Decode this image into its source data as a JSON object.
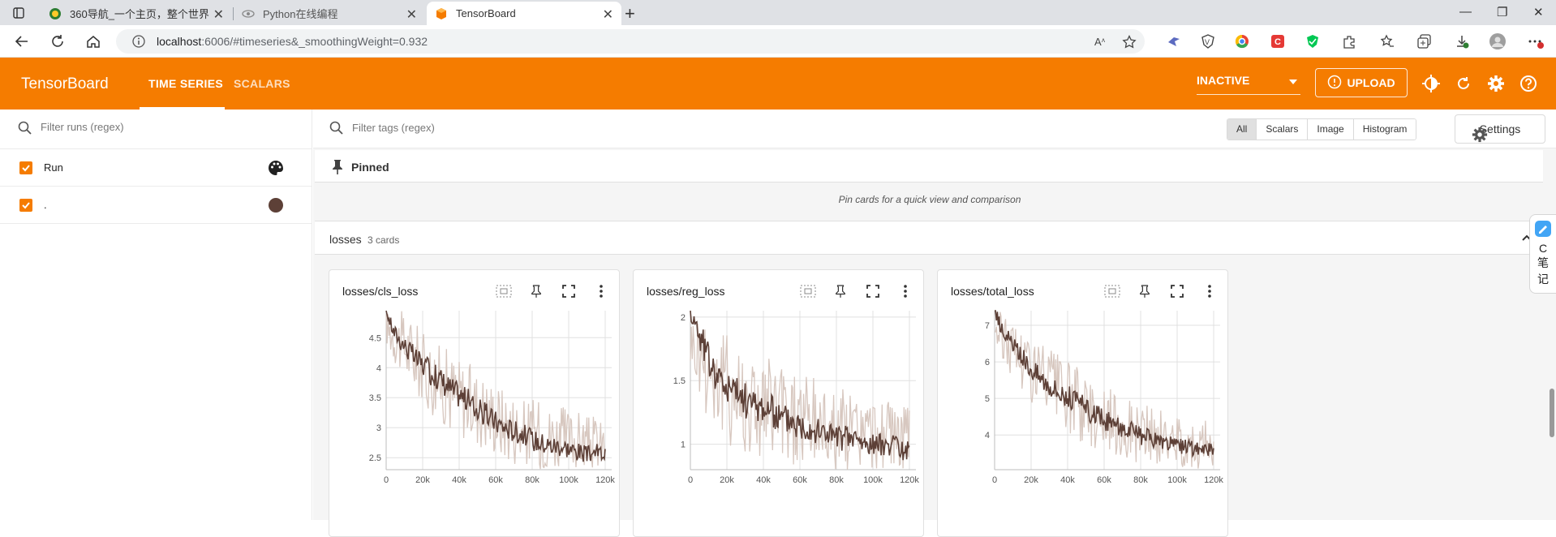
{
  "browser": {
    "tabs": [
      {
        "title": "360导航_一个主页，整个世界"
      },
      {
        "title": "Python在线编程"
      },
      {
        "title": "TensorBoard"
      }
    ],
    "url": {
      "host": "localhost",
      "path": ":6006/#timeseries&_smoothingWeight=0.932"
    }
  },
  "header": {
    "logo": "TensorBoard",
    "tabs": [
      "TIME SERIES",
      "SCALARS"
    ],
    "run_state": "INACTIVE",
    "upload_label": "UPLOAD"
  },
  "sidebar": {
    "filter_placeholder": "Filter runs (regex)",
    "runs": [
      {
        "label": "Run",
        "checked": true
      },
      {
        "label": ".",
        "checked": true,
        "color": "#5d4037"
      }
    ]
  },
  "main": {
    "filter_placeholder": "Filter tags (regex)",
    "type_filters": [
      "All",
      "Scalars",
      "Image",
      "Histogram"
    ],
    "selected_type": "All",
    "settings_label": "Settings",
    "pinned_label": "Pinned",
    "pinned_message": "Pin cards for a quick view and comparison",
    "group_name": "losses",
    "group_count": "3 cards"
  },
  "side_widget": {
    "line1": "C",
    "line2": "笔",
    "line3": "记"
  },
  "colors": {
    "accent": "#f57c00",
    "smoothed": "#5d4037",
    "raw": "#d7c7bf"
  },
  "chart_data": [
    {
      "type": "line",
      "title": "losses/cls_loss",
      "xticks": [
        "0",
        "20k",
        "40k",
        "60k",
        "80k",
        "100k",
        "120k"
      ],
      "yticks": [
        "2.5",
        "3",
        "3.5",
        "4",
        "4.5"
      ],
      "xlim": [
        0,
        120000
      ],
      "ylim": [
        2.3,
        4.95
      ],
      "series": [
        {
          "x": [
            0,
            4000,
            8000,
            12000,
            16000,
            20000,
            25000,
            30000,
            35000,
            40000,
            45000,
            50000,
            55000,
            60000,
            65000,
            70000,
            75000,
            80000,
            85000,
            90000,
            95000,
            100000,
            105000,
            110000,
            115000,
            120000
          ],
          "smoothed": [
            4.95,
            4.6,
            4.45,
            4.3,
            4.15,
            4.05,
            3.9,
            3.8,
            3.65,
            3.55,
            3.45,
            3.3,
            3.2,
            3.1,
            3.0,
            2.95,
            2.9,
            2.8,
            2.75,
            2.7,
            2.7,
            2.65,
            2.6,
            2.55,
            2.6,
            2.55
          ],
          "raw_min": [
            4.4,
            4.1,
            3.9,
            3.7,
            3.55,
            3.4,
            3.2,
            3.1,
            2.9,
            2.85,
            2.8,
            2.7,
            2.6,
            2.55,
            2.45,
            2.4,
            2.35,
            2.35,
            2.3,
            2.3,
            2.3,
            2.3,
            2.3,
            2.3,
            2.3,
            2.3
          ],
          "raw_max": [
            4.95,
            4.95,
            4.95,
            4.9,
            4.8,
            4.6,
            4.5,
            4.4,
            4.3,
            4.2,
            4.1,
            4.0,
            3.9,
            3.8,
            3.7,
            3.6,
            3.5,
            3.5,
            3.45,
            3.4,
            3.4,
            3.3,
            3.3,
            3.2,
            3.2,
            3.1
          ]
        }
      ]
    },
    {
      "type": "line",
      "title": "losses/reg_loss",
      "xticks": [
        "0",
        "20k",
        "40k",
        "60k",
        "80k",
        "100k",
        "120k"
      ],
      "yticks": [
        "1",
        "1.5",
        "2"
      ],
      "xlim": [
        0,
        120000
      ],
      "ylim": [
        0.8,
        2.05
      ],
      "series": [
        {
          "x": [
            0,
            4000,
            8000,
            12000,
            16000,
            20000,
            25000,
            30000,
            35000,
            40000,
            45000,
            50000,
            55000,
            60000,
            65000,
            70000,
            75000,
            80000,
            85000,
            90000,
            95000,
            100000,
            105000,
            110000,
            115000,
            120000
          ],
          "smoothed": [
            2.05,
            1.9,
            1.75,
            1.6,
            1.5,
            1.45,
            1.4,
            1.35,
            1.3,
            1.3,
            1.25,
            1.2,
            1.2,
            1.15,
            1.15,
            1.1,
            1.1,
            1.05,
            1.05,
            1.05,
            1.0,
            1.0,
            1.0,
            1.0,
            0.95,
            0.95
          ],
          "raw_min": [
            1.6,
            1.4,
            1.25,
            1.15,
            1.05,
            1.0,
            0.95,
            0.9,
            0.9,
            0.85,
            0.85,
            0.85,
            0.8,
            0.8,
            0.8,
            0.8,
            0.8,
            0.8,
            0.8,
            0.8,
            0.8,
            0.8,
            0.8,
            0.8,
            0.8,
            0.8
          ],
          "raw_max": [
            2.05,
            2.05,
            2.05,
            2.0,
            1.95,
            1.9,
            1.85,
            1.8,
            1.75,
            1.7,
            1.7,
            1.65,
            1.6,
            1.6,
            1.55,
            1.5,
            1.5,
            1.45,
            1.45,
            1.4,
            1.4,
            1.35,
            1.35,
            1.35,
            1.3,
            1.3
          ]
        }
      ]
    },
    {
      "type": "line",
      "title": "losses/total_loss",
      "xticks": [
        "0",
        "20k",
        "40k",
        "60k",
        "80k",
        "100k",
        "120k"
      ],
      "yticks": [
        "4",
        "5",
        "6",
        "7"
      ],
      "xlim": [
        0,
        120000
      ],
      "ylim": [
        3.05,
        7.4
      ],
      "series": [
        {
          "x": [
            0,
            4000,
            8000,
            12000,
            16000,
            20000,
            25000,
            30000,
            35000,
            40000,
            45000,
            50000,
            55000,
            60000,
            65000,
            70000,
            75000,
            80000,
            85000,
            90000,
            95000,
            100000,
            105000,
            110000,
            115000,
            120000
          ],
          "smoothed": [
            7.4,
            6.9,
            6.6,
            6.3,
            6.05,
            5.85,
            5.6,
            5.4,
            5.2,
            5.05,
            4.9,
            4.7,
            4.55,
            4.4,
            4.3,
            4.2,
            4.1,
            3.95,
            3.9,
            3.8,
            3.75,
            3.7,
            3.65,
            3.6,
            3.6,
            3.6
          ],
          "raw_min": [
            6.5,
            6.0,
            5.7,
            5.4,
            5.1,
            4.9,
            4.6,
            4.4,
            4.2,
            4.0,
            3.9,
            3.7,
            3.6,
            3.5,
            3.4,
            3.35,
            3.3,
            3.2,
            3.15,
            3.1,
            3.1,
            3.1,
            3.1,
            3.05,
            3.1,
            3.1
          ],
          "raw_max": [
            7.4,
            7.4,
            7.3,
            7.2,
            7.0,
            6.8,
            6.6,
            6.4,
            6.2,
            6.0,
            5.9,
            5.7,
            5.5,
            5.4,
            5.2,
            5.1,
            5.0,
            4.9,
            4.8,
            4.7,
            4.6,
            4.6,
            4.5,
            4.4,
            4.4,
            4.3
          ]
        }
      ]
    }
  ]
}
